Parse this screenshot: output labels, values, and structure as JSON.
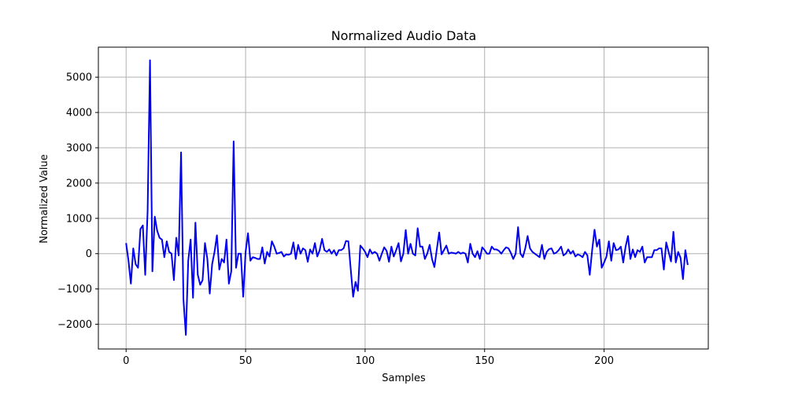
{
  "chart_data": {
    "type": "line",
    "title": "Normalized Audio Data",
    "xlabel": "Samples",
    "ylabel": "Normalized Value",
    "xlim": [
      -11.6,
      243.6
    ],
    "ylim": [
      -2700,
      5850
    ],
    "xticks": [
      0,
      50,
      100,
      150,
      200
    ],
    "yticks": [
      -2000,
      -1000,
      0,
      1000,
      2000,
      3000,
      4000,
      5000
    ],
    "xtick_labels": [
      "0",
      "50",
      "100",
      "150",
      "200"
    ],
    "ytick_labels": [
      "−2000",
      "−1000",
      "0",
      "1000",
      "2000",
      "3000",
      "4000",
      "5000"
    ],
    "grid": true,
    "series": [
      {
        "color": "#0000ee",
        "values": [
          300,
          -200,
          -850,
          150,
          -300,
          -400,
          700,
          800,
          -600,
          1200,
          5480,
          -500,
          1050,
          650,
          450,
          400,
          -100,
          350,
          50,
          0,
          -750,
          450,
          -50,
          2870,
          -1300,
          -2300,
          -200,
          400,
          -1250,
          880,
          -600,
          -880,
          -750,
          300,
          -150,
          -1130,
          -300,
          50,
          520,
          -450,
          -150,
          -250,
          400,
          -850,
          -500,
          3180,
          -400,
          0,
          0,
          -1220,
          50,
          580,
          -200,
          -100,
          -120,
          -150,
          -150,
          180,
          -280,
          50,
          -80,
          350,
          200,
          0,
          20,
          50,
          -80,
          -20,
          -30,
          0,
          320,
          -150,
          250,
          0,
          150,
          100,
          -230,
          120,
          0,
          300,
          -80,
          100,
          420,
          100,
          50,
          120,
          0,
          100,
          -50,
          100,
          100,
          150,
          360,
          350,
          -450,
          -1220,
          -800,
          -1050,
          230,
          150,
          50,
          -100,
          120,
          0,
          50,
          0,
          -200,
          0,
          180,
          80,
          -230,
          200,
          -80,
          100,
          300,
          -220,
          0,
          670,
          0,
          280,
          0,
          -50,
          720,
          200,
          200,
          -150,
          0,
          250,
          -150,
          -380,
          120,
          600,
          -20,
          100,
          230,
          0,
          30,
          20,
          0,
          50,
          0,
          30,
          0,
          -250,
          280,
          0,
          -100,
          70,
          -150,
          180,
          100,
          0,
          0,
          200,
          120,
          120,
          80,
          0,
          100,
          180,
          150,
          20,
          -150,
          0,
          750,
          0,
          -100,
          150,
          500,
          150,
          50,
          0,
          -50,
          -100,
          250,
          -150,
          50,
          130,
          150,
          0,
          30,
          100,
          200,
          -50,
          0,
          120,
          0,
          80,
          -80,
          -20,
          -50,
          -100,
          50,
          -50,
          -600,
          100,
          680,
          200,
          400,
          -400,
          -250,
          -80,
          350,
          -200,
          300,
          100,
          120,
          200,
          -250,
          200,
          500,
          -150,
          120,
          -100,
          100,
          50,
          200,
          -250,
          -100,
          -100,
          -100,
          100,
          100,
          150,
          150,
          -450,
          320,
          50,
          -220,
          620,
          -250,
          50,
          -120,
          -720,
          100,
          -320
        ]
      }
    ]
  }
}
